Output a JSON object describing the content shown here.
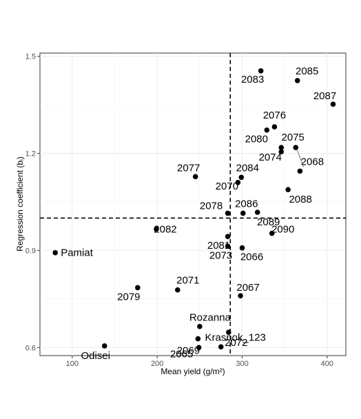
{
  "chart_data": {
    "type": "scatter",
    "xlabel": "Mean yield (g/m²)",
    "ylabel": "Regression coefficient (bᵢ)",
    "xlim": [
      62,
      422
    ],
    "ylim": [
      0.575,
      1.51
    ],
    "x_ticks": [
      100,
      200,
      300,
      400
    ],
    "y_ticks": [
      0.6,
      0.9,
      1.2,
      1.5
    ],
    "x_tick_labels": [
      "100",
      "200",
      "300",
      "400"
    ],
    "y_tick_labels": [
      "0.6",
      "0.9",
      "1.2",
      "1.5"
    ],
    "grid": true,
    "vline_x": 286,
    "hline_y": 1.0,
    "reference_line_style": "dashed",
    "points": [
      {
        "label": "2083",
        "x": 322,
        "y": 1.455
      },
      {
        "label": "2085",
        "x": 365,
        "y": 1.425
      },
      {
        "label": "2087",
        "x": 407,
        "y": 1.352
      },
      {
        "label": "2076",
        "x": 338,
        "y": 1.282
      },
      {
        "label": "2080",
        "x": 329,
        "y": 1.272
      },
      {
        "label": "2075",
        "x": 363,
        "y": 1.218
      },
      {
        "label": "2074",
        "x": 346,
        "y": 1.218
      },
      {
        "label": "",
        "x": 346,
        "y": 1.205
      },
      {
        "label": "2068",
        "x": 368,
        "y": 1.145
      },
      {
        "label": "2077",
        "x": 245,
        "y": 1.128
      },
      {
        "label": "2084",
        "x": 299,
        "y": 1.126
      },
      {
        "label": "2070",
        "x": 295,
        "y": 1.11
      },
      {
        "label": "2088",
        "x": 354,
        "y": 1.088
      },
      {
        "label": "2089",
        "x": 318,
        "y": 1.018
      },
      {
        "label": "2078",
        "x": 283,
        "y": 1.015
      },
      {
        "label": "2086",
        "x": 301,
        "y": 1.015
      },
      {
        "label": "2082",
        "x": 199,
        "y": 0.966
      },
      {
        "label": "2090",
        "x": 335,
        "y": 0.953
      },
      {
        "label": "2081",
        "x": 283,
        "y": 0.943
      },
      {
        "label": "2073",
        "x": 283,
        "y": 0.913
      },
      {
        "label": "2066",
        "x": 300,
        "y": 0.908
      },
      {
        "label": "Pamiat",
        "x": 80,
        "y": 0.893
      },
      {
        "label": "2079",
        "x": 177,
        "y": 0.785
      },
      {
        "label": "2071",
        "x": 224,
        "y": 0.778
      },
      {
        "label": "2067",
        "x": 298,
        "y": 0.76
      },
      {
        "label": "Rozanna",
        "x": 250,
        "y": 0.665
      },
      {
        "label": "2072",
        "x": 284,
        "y": 0.647
      },
      {
        "label": "2069",
        "x": 248,
        "y": 0.627
      },
      {
        "label": "Odisei",
        "x": 138,
        "y": 0.605
      },
      {
        "label": "Krasnok_123",
        "x": 275,
        "y": 0.602
      },
      {
        "label": "2065",
        "x": 249,
        "y": 0.6
      }
    ]
  }
}
